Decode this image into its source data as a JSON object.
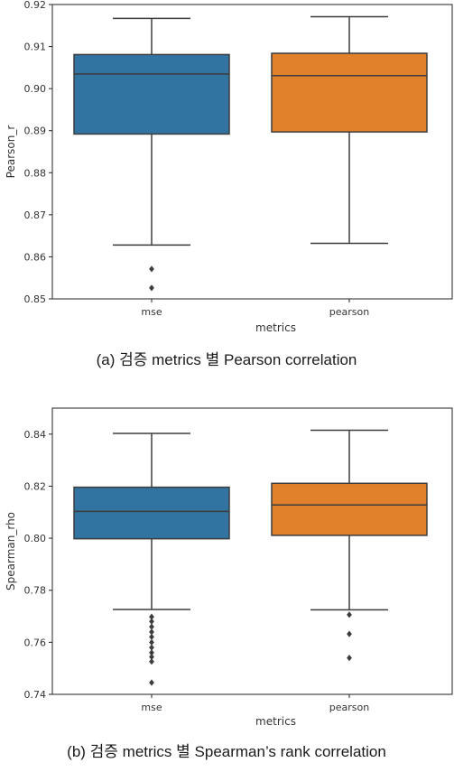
{
  "chart_data": [
    {
      "type": "box",
      "caption": "(a) 검증 metrics 별 Pearson correlation",
      "xlabel": "metrics",
      "ylabel": "Pearson_r",
      "ylim": [
        0.85,
        0.92
      ],
      "yticks": [
        "0.85",
        "0.86",
        "0.87",
        "0.88",
        "0.89",
        "0.90",
        "0.91",
        "0.92"
      ],
      "categories": [
        "mse",
        "pearson"
      ],
      "colors": [
        "#3274a1",
        "#e1812c"
      ],
      "boxes": [
        {
          "name": "mse",
          "whisker_low": 0.8628,
          "q1": 0.8892,
          "median": 0.9035,
          "q3": 0.9081,
          "whisker_high": 0.9167,
          "outliers": [
            0.8571,
            0.8526
          ]
        },
        {
          "name": "pearson",
          "whisker_low": 0.8632,
          "q1": 0.8897,
          "median": 0.9031,
          "q3": 0.9084,
          "whisker_high": 0.9171,
          "outliers": []
        }
      ],
      "grid": false
    },
    {
      "type": "box",
      "caption": "(b) 검증 metrics 별 Spearman’s rank correlation",
      "xlabel": "metrics",
      "ylabel": "Spearman_rho",
      "ylim": [
        0.74,
        0.85
      ],
      "yticks": [
        "0.74",
        "0.76",
        "0.78",
        "0.80",
        "0.82",
        "0.84"
      ],
      "categories": [
        "mse",
        "pearson"
      ],
      "colors": [
        "#3274a1",
        "#e1812c"
      ],
      "boxes": [
        {
          "name": "mse",
          "whisker_low": 0.7726,
          "q1": 0.7998,
          "median": 0.8103,
          "q3": 0.8196,
          "whisker_high": 0.8403,
          "outliers": [
            0.7698,
            0.768,
            0.766,
            0.764,
            0.7621,
            0.76,
            0.758,
            0.756,
            0.7544,
            0.7526,
            0.7445
          ]
        },
        {
          "name": "pearson",
          "whisker_low": 0.7725,
          "q1": 0.8011,
          "median": 0.8128,
          "q3": 0.8211,
          "whisker_high": 0.8415,
          "outliers": [
            0.7706,
            0.7632,
            0.754
          ]
        }
      ],
      "grid": false
    }
  ]
}
